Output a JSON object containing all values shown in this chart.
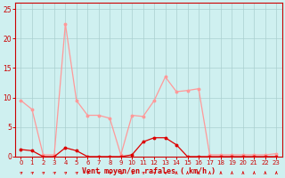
{
  "background_color": "#cff0f0",
  "grid_color": "#aacfcf",
  "line1_color": "#ff9999",
  "line2_color": "#dd0000",
  "xlabel": "Vent moyen/en rafales ( km/h )",
  "xlabel_color": "#cc0000",
  "tick_color": "#cc0000",
  "xlim": [
    -0.5,
    23.5
  ],
  "ylim": [
    0,
    26
  ],
  "yticks": [
    0,
    5,
    10,
    15,
    20,
    25
  ],
  "xticks": [
    0,
    1,
    2,
    3,
    4,
    5,
    6,
    7,
    8,
    9,
    10,
    11,
    12,
    13,
    14,
    15,
    16,
    17,
    18,
    19,
    20,
    21,
    22,
    23
  ],
  "hours": [
    0,
    1,
    2,
    3,
    4,
    5,
    6,
    7,
    8,
    9,
    10,
    11,
    12,
    13,
    14,
    15,
    16,
    17,
    18,
    19,
    20,
    21,
    22,
    23
  ],
  "rafales": [
    9.5,
    8.0,
    0.3,
    0.3,
    22.5,
    9.5,
    7.0,
    7.0,
    6.5,
    0.3,
    7.0,
    6.8,
    9.5,
    13.5,
    11.0,
    11.2,
    11.5,
    0.3,
    0.3,
    0.3,
    0.3,
    0.3,
    0.3,
    0.5
  ],
  "moyen": [
    1.2,
    1.0,
    0.0,
    0.0,
    1.5,
    1.0,
    0.0,
    0.0,
    0.0,
    0.0,
    0.3,
    2.5,
    3.2,
    3.2,
    2.0,
    0.0,
    0.0,
    0.0,
    0.0,
    0.0,
    0.0,
    0.0,
    0.0,
    0.0
  ],
  "figsize": [
    3.2,
    2.0
  ],
  "dpi": 100
}
